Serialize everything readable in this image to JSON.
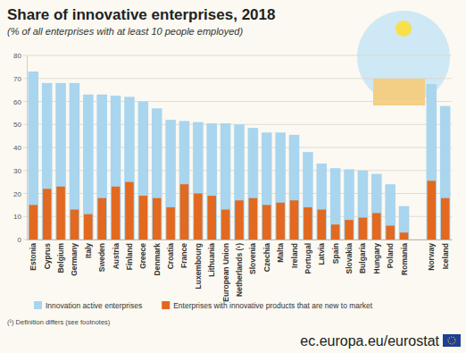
{
  "chart_data": {
    "type": "bar",
    "title": "Share of innovative enterprises, 2018",
    "subtitle": "(% of all enterprises with at least 10 people employed)",
    "footnote": "(¹) Definition differs (see footnotes)",
    "source": "ec.europa.eu/eurostat",
    "categories": [
      "Estonia",
      "Cyprus",
      "Belgium",
      "Germany",
      "Italy",
      "Sweden",
      "Austria",
      "Finland",
      "Greece",
      "Denmark",
      "Croatia",
      "France",
      "Luxembourg",
      "Lithuania",
      "European Union",
      "Netherlands (¹)",
      "Slovenia",
      "Czechia",
      "Malta",
      "Ireland",
      "Portugal",
      "Latvia",
      "Spain",
      "Slovakia",
      "Bulgaria",
      "Hungary",
      "Poland",
      "Romania",
      null,
      "Norway",
      "Iceland"
    ],
    "series": [
      {
        "name": "Innovation active enterprises",
        "color": "#a9d5ef",
        "values": [
          73,
          68,
          68,
          68,
          63,
          63,
          62.5,
          62,
          60,
          57,
          52,
          51.5,
          51,
          50.5,
          50.5,
          50,
          48.5,
          46.5,
          46.5,
          45.5,
          38,
          33,
          31,
          30.5,
          30,
          28.5,
          24,
          14.5,
          null,
          67.5,
          58
        ]
      },
      {
        "name": "Enterprises with innovative products that are new to market",
        "color": "#e2691f",
        "values": [
          15,
          22,
          23,
          13,
          11,
          18,
          23,
          25,
          19,
          18,
          14,
          24,
          20,
          19,
          13,
          17,
          18,
          15,
          16,
          17,
          14,
          13,
          6.5,
          8.5,
          9.5,
          11.5,
          6,
          3,
          null,
          25.5,
          18
        ]
      }
    ],
    "ylim": [
      0,
      80
    ],
    "yticks": [
      0,
      10,
      20,
      30,
      40,
      50,
      60,
      70,
      80
    ],
    "grid": true,
    "legend": "bottom"
  }
}
